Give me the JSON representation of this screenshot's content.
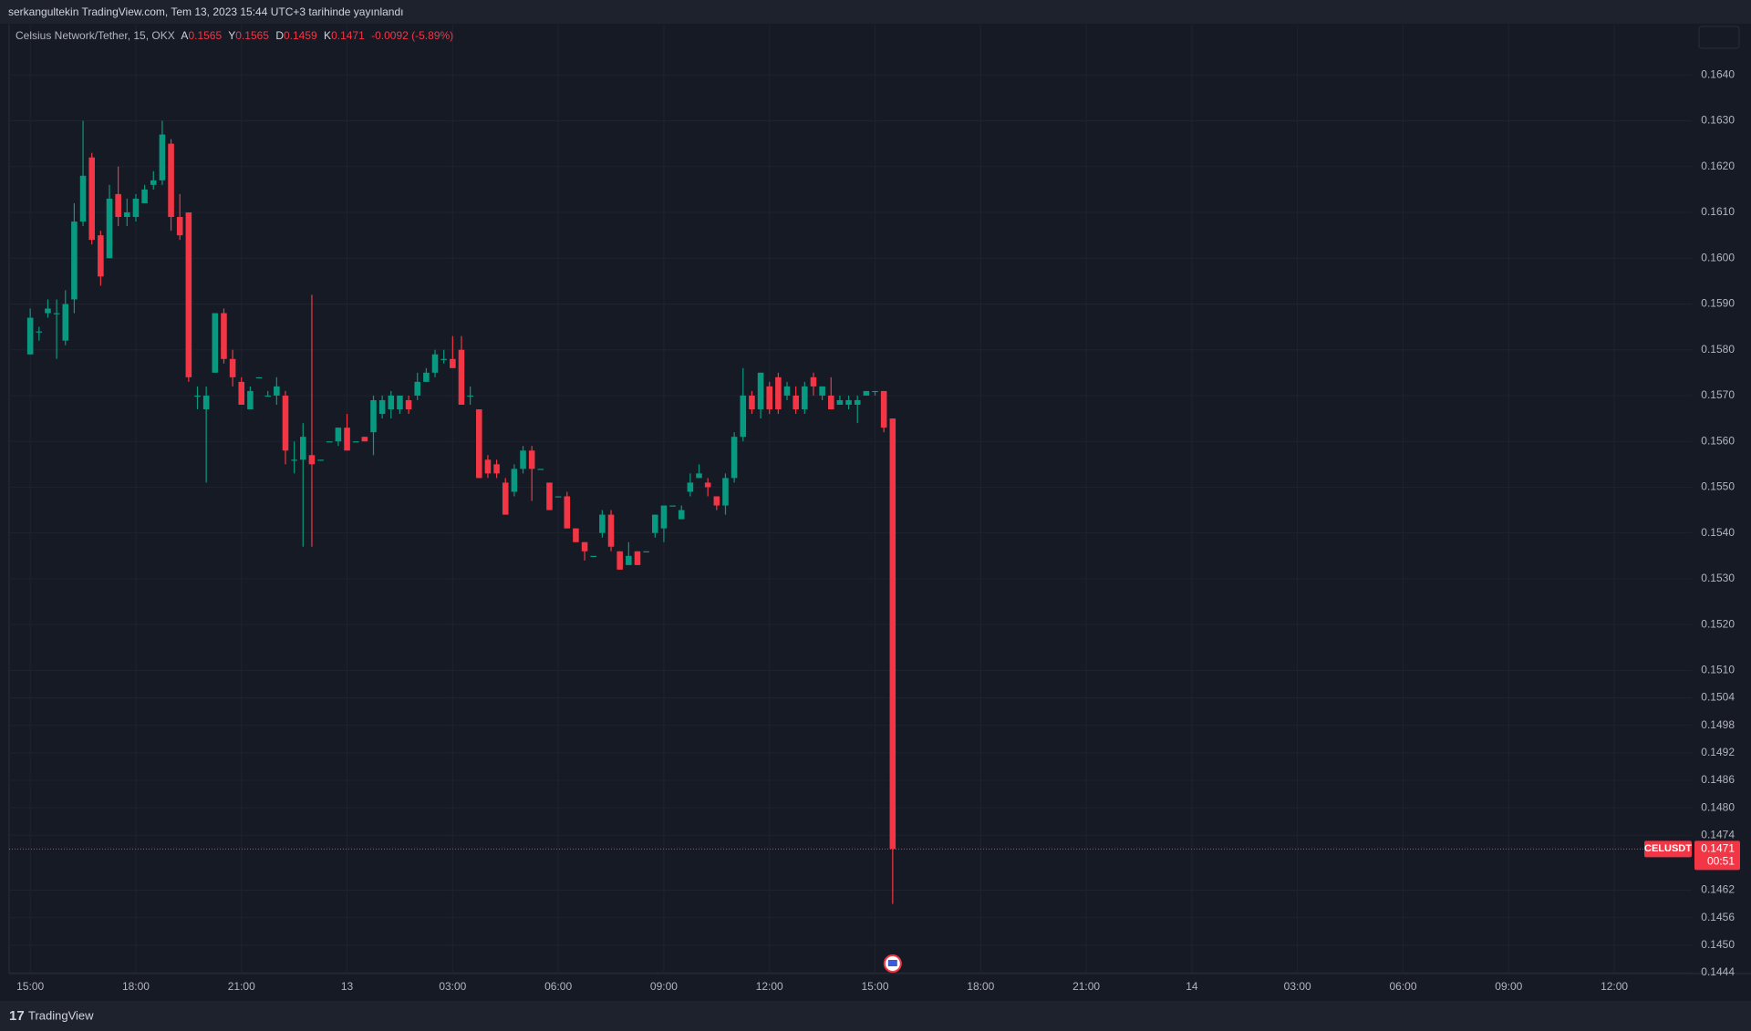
{
  "header": "serkangultekin TradingView.com, Tem 13, 2023 15:44 UTC+3 tarihinde yayınlandı",
  "footer": "TradingView",
  "chart_data": {
    "type": "candlestick",
    "symbol": "Celsius Network/Tether, 15, OKX",
    "ohlc_labels": [
      "A",
      "Y",
      "D",
      "K"
    ],
    "change": "-0.0092 (-5.89%)",
    "price_tag": "CELUSDT",
    "countdown": "00:51",
    "up_color": "#089981",
    "down_color": "#f23645",
    "grid": true,
    "x": [
      0,
      0.25,
      0.5,
      0.75,
      1,
      1.25,
      1.5,
      1.75,
      2,
      2.25,
      2.5,
      2.75,
      3,
      3.25,
      3.5,
      3.75,
      4,
      4.25,
      4.5,
      4.75,
      5,
      5.25,
      5.5,
      5.75,
      6,
      6.25,
      6.5,
      6.75,
      7,
      7.25,
      7.5,
      7.75,
      8,
      8.25,
      8.5,
      8.75,
      9,
      9.25,
      9.5,
      9.75,
      10,
      10.25,
      10.5,
      10.75,
      11,
      11.25,
      11.5,
      11.75,
      12,
      12.25,
      12.5,
      12.75,
      13,
      13.25,
      13.5,
      13.75,
      14,
      14.25,
      14.5,
      14.75,
      15,
      15.25,
      15.5,
      15.75,
      16,
      16.25,
      16.5,
      16.75,
      17,
      17.25,
      17.5,
      17.75,
      18,
      18.25,
      18.5,
      18.75,
      19,
      19.25,
      19.5,
      19.75,
      20,
      20.25,
      20.5,
      20.75,
      21,
      21.25,
      21.5,
      21.75,
      22,
      22.25,
      22.5,
      22.75,
      23,
      23.25,
      23.5,
      23.75,
      24,
      24.25,
      24.5
    ],
    "open": [
      0.1579,
      0.1584,
      0.1588,
      0.1588,
      0.1582,
      0.1591,
      0.1608,
      0.1622,
      0.1605,
      0.16,
      0.1614,
      0.1609,
      0.1609,
      0.1612,
      0.1616,
      0.1617,
      0.1625,
      0.1609,
      0.161,
      0.157,
      0.1567,
      0.1575,
      0.1588,
      0.1578,
      0.1573,
      0.1567,
      0.1574,
      0.157,
      0.157,
      0.157,
      0.1556,
      0.1556,
      0.1557,
      0.1556,
      0.156,
      0.156,
      0.1563,
      0.156,
      0.1561,
      0.1562,
      0.1566,
      0.1567,
      0.1567,
      0.1569,
      0.157,
      0.1573,
      0.1575,
      0.1578,
      0.1578,
      0.158,
      0.157,
      0.1567,
      0.1556,
      0.1555,
      0.1551,
      0.1549,
      0.1554,
      0.1558,
      0.1554,
      0.1551,
      0.1548,
      0.1548,
      0.1541,
      0.1538,
      0.1535,
      0.154,
      0.1544,
      0.1536,
      0.1533,
      0.1536,
      0.1536,
      0.154,
      0.1541,
      0.1546,
      0.1543,
      0.1549,
      0.1552,
      0.1551,
      0.1548,
      0.1546,
      0.1552,
      0.1561,
      0.157,
      0.1567,
      0.1572,
      0.1574,
      0.157,
      0.157,
      0.1567,
      0.1574,
      0.157,
      0.157,
      0.1568,
      0.1568,
      0.1568,
      0.157,
      0.1571,
      0.1571,
      0.1565
    ],
    "high": [
      0.1589,
      0.1585,
      0.1591,
      0.1591,
      0.1593,
      0.1612,
      0.163,
      0.1623,
      0.1606,
      0.1616,
      0.162,
      0.1613,
      0.1614,
      0.1616,
      0.1619,
      0.163,
      0.1626,
      0.1614,
      0.161,
      0.1572,
      0.1572,
      0.1588,
      0.1589,
      0.158,
      0.1574,
      0.1572,
      0.1574,
      0.1571,
      0.1574,
      0.1571,
      0.156,
      0.1564,
      0.1592,
      0.1556,
      0.156,
      0.1563,
      0.1566,
      0.156,
      0.1561,
      0.157,
      0.157,
      0.1571,
      0.157,
      0.157,
      0.1575,
      0.1576,
      0.158,
      0.158,
      0.1583,
      0.1583,
      0.1572,
      0.1567,
      0.1557,
      0.1556,
      0.1552,
      0.1555,
      0.1559,
      0.1559,
      0.1554,
      0.1551,
      0.1548,
      0.1549,
      0.1541,
      0.1538,
      0.1535,
      0.1545,
      0.1545,
      0.1536,
      0.1538,
      0.1536,
      0.1536,
      0.1544,
      0.1546,
      0.1546,
      0.1546,
      0.1553,
      0.1555,
      0.1552,
      0.1548,
      0.1553,
      0.1562,
      0.1576,
      0.1571,
      0.1575,
      0.1573,
      0.1575,
      0.1573,
      0.1572,
      0.1573,
      0.1575,
      0.1572,
      0.1574,
      0.157,
      0.157,
      0.157,
      0.1571,
      0.1571,
      0.1571,
      0.1565
    ],
    "low": [
      0.1579,
      0.1582,
      0.1587,
      0.1578,
      0.1581,
      0.1588,
      0.1607,
      0.1603,
      0.1594,
      0.16,
      0.1607,
      0.1607,
      0.1608,
      0.1612,
      0.1615,
      0.1616,
      0.1606,
      0.1604,
      0.1573,
      0.1567,
      0.1551,
      0.1575,
      0.1577,
      0.1572,
      0.1568,
      0.1567,
      0.1574,
      0.157,
      0.1568,
      0.1555,
      0.1553,
      0.1537,
      0.1537,
      0.1556,
      0.156,
      0.1559,
      0.1558,
      0.156,
      0.156,
      0.1557,
      0.1565,
      0.1565,
      0.1566,
      0.1566,
      0.1569,
      0.1573,
      0.1574,
      0.1577,
      0.1576,
      0.1568,
      0.1568,
      0.1552,
      0.1552,
      0.1552,
      0.1544,
      0.1548,
      0.1553,
      0.1547,
      0.1554,
      0.1545,
      0.1548,
      0.1541,
      0.1538,
      0.1534,
      0.1535,
      0.1539,
      0.1536,
      0.1532,
      0.1533,
      0.1533,
      0.1536,
      0.1539,
      0.1538,
      0.1546,
      0.1543,
      0.1548,
      0.1552,
      0.1548,
      0.1545,
      0.1544,
      0.1551,
      0.156,
      0.1566,
      0.1565,
      0.1566,
      0.1566,
      0.1569,
      0.1566,
      0.1566,
      0.157,
      0.1569,
      0.1567,
      0.1568,
      0.1567,
      0.1564,
      0.157,
      0.157,
      0.1562,
      0.1459
    ],
    "close": [
      0.1587,
      0.1584,
      0.1589,
      0.1588,
      0.159,
      0.1608,
      0.1618,
      0.1604,
      0.1596,
      0.1613,
      0.1609,
      0.161,
      0.1613,
      0.1615,
      0.1617,
      0.1627,
      0.1609,
      0.1605,
      0.1574,
      0.157,
      0.157,
      0.1588,
      0.1578,
      0.1574,
      0.1568,
      0.1571,
      0.1574,
      0.157,
      0.1572,
      0.1558,
      0.1556,
      0.1561,
      0.1555,
      0.1556,
      0.156,
      0.1563,
      0.1558,
      0.156,
      0.156,
      0.1569,
      0.1569,
      0.157,
      0.157,
      0.1567,
      0.1573,
      0.1575,
      0.1579,
      0.1578,
      0.1576,
      0.1568,
      0.157,
      0.1552,
      0.1553,
      0.1553,
      0.1544,
      0.1554,
      0.1558,
      0.1554,
      0.1554,
      0.1545,
      0.1548,
      0.1541,
      0.1538,
      0.1536,
      0.1535,
      0.1544,
      0.1537,
      0.1532,
      0.1535,
      0.1533,
      0.1536,
      0.1544,
      0.1546,
      0.1546,
      0.1545,
      0.1551,
      0.1553,
      0.155,
      0.1546,
      0.1552,
      0.1561,
      0.157,
      0.1567,
      0.1575,
      0.1567,
      0.1567,
      0.1572,
      0.1567,
      0.1572,
      0.1572,
      0.1572,
      0.1567,
      0.1569,
      0.1569,
      0.1569,
      0.1571,
      0.1571,
      0.1563,
      0.1471
    ],
    "xlim": [
      -0.6,
      47.2
    ],
    "xticks": [
      {
        "value": 0,
        "label": "15:00"
      },
      {
        "value": 3,
        "label": "18:00"
      },
      {
        "value": 6,
        "label": "21:00"
      },
      {
        "value": 9,
        "label": "13"
      },
      {
        "value": 12,
        "label": "03:00"
      },
      {
        "value": 15,
        "label": "06:00"
      },
      {
        "value": 18,
        "label": "09:00"
      },
      {
        "value": 21,
        "label": "12:00"
      },
      {
        "value": 24,
        "label": "15:00"
      },
      {
        "value": 27,
        "label": "18:00"
      },
      {
        "value": 30,
        "label": "21:00"
      },
      {
        "value": 33,
        "label": "14"
      },
      {
        "value": 36,
        "label": "03:00"
      },
      {
        "value": 39,
        "label": "06:00"
      },
      {
        "value": 42,
        "label": "09:00"
      },
      {
        "value": 45,
        "label": "12:00"
      }
    ],
    "ylim": [
      0.14438,
      0.1651
    ],
    "yticks": [
      {
        "value": 0.164,
        "label": "0.1640"
      },
      {
        "value": 0.163,
        "label": "0.1630"
      },
      {
        "value": 0.162,
        "label": "0.1620"
      },
      {
        "value": 0.161,
        "label": "0.1610"
      },
      {
        "value": 0.16,
        "label": "0.1600"
      },
      {
        "value": 0.159,
        "label": "0.1590"
      },
      {
        "value": 0.158,
        "label": "0.1580"
      },
      {
        "value": 0.157,
        "label": "0.1570"
      },
      {
        "value": 0.156,
        "label": "0.1560"
      },
      {
        "value": 0.155,
        "label": "0.1550"
      },
      {
        "value": 0.154,
        "label": "0.1540"
      },
      {
        "value": 0.153,
        "label": "0.1530"
      },
      {
        "value": 0.152,
        "label": "0.1520"
      },
      {
        "value": 0.151,
        "label": "0.1510"
      },
      {
        "value": 0.1504,
        "label": "0.1504"
      },
      {
        "value": 0.1498,
        "label": "0.1498"
      },
      {
        "value": 0.1492,
        "label": "0.1492"
      },
      {
        "value": 0.1486,
        "label": "0.1486"
      },
      {
        "value": 0.148,
        "label": "0.1480"
      },
      {
        "value": 0.1474,
        "label": "0.1474"
      },
      {
        "value": 0.1462,
        "label": "0.1462"
      },
      {
        "value": 0.1456,
        "label": "0.1456"
      },
      {
        "value": 0.145,
        "label": "0.1450"
      },
      {
        "value": 0.1444,
        "label": "0.1444"
      }
    ]
  }
}
